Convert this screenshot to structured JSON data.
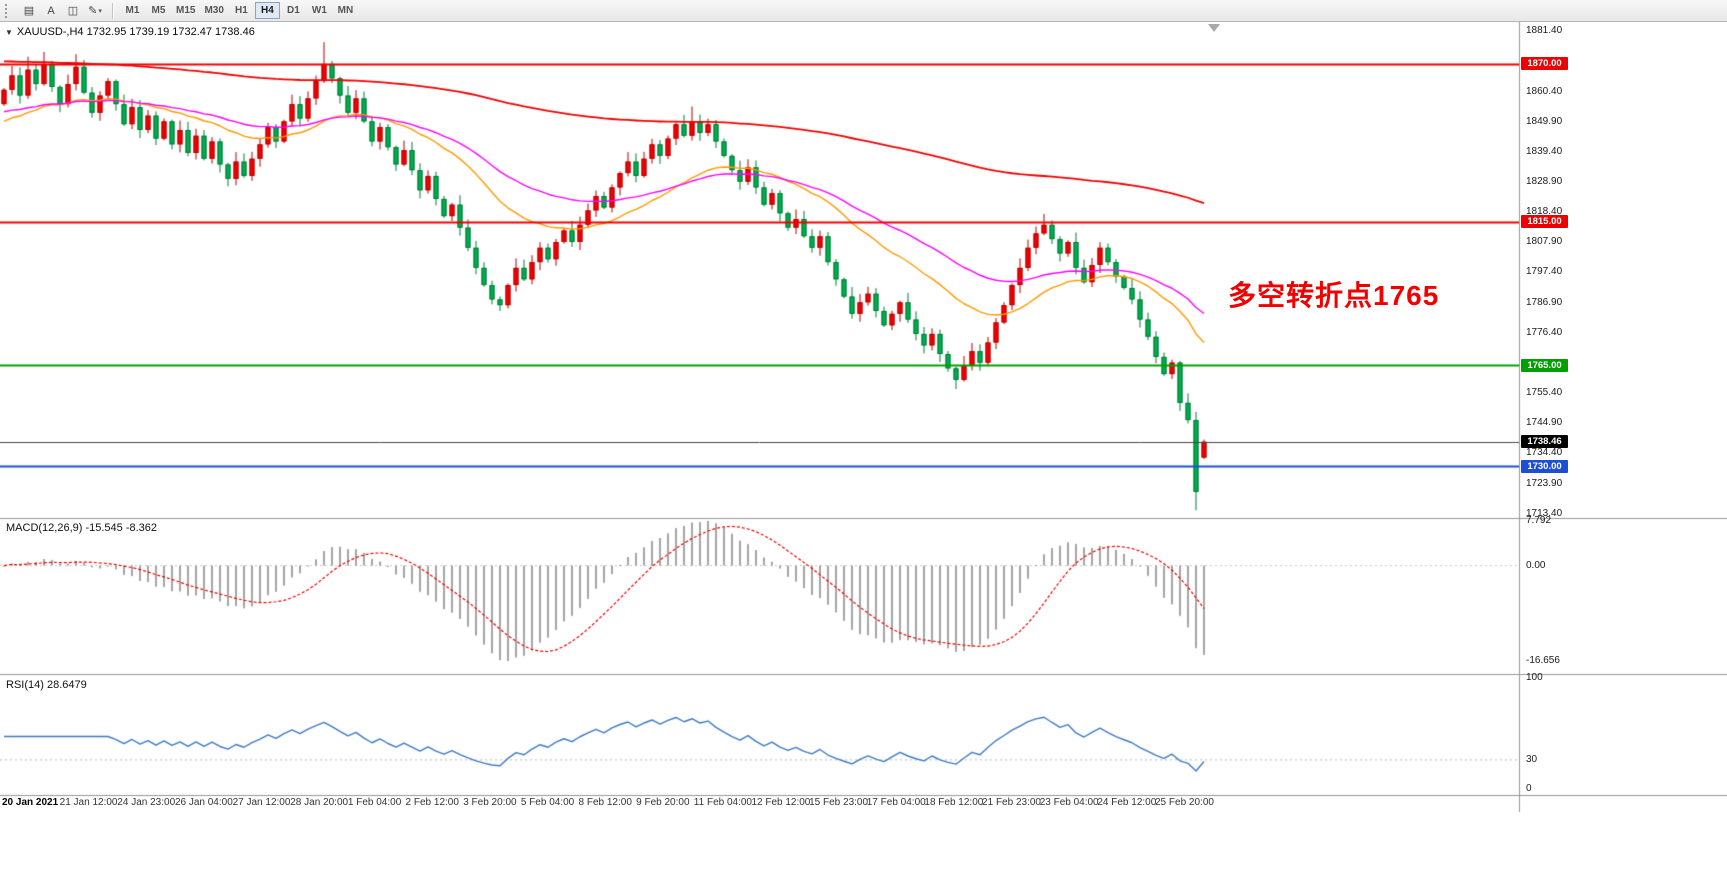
{
  "toolbar": {
    "tools": [
      {
        "name": "chart-type",
        "glyph": "▤",
        "dropdown": false
      },
      {
        "name": "text-label",
        "glyph": "A",
        "dropdown": false
      },
      {
        "name": "template",
        "glyph": "◫",
        "dropdown": false
      },
      {
        "name": "draw-objects",
        "glyph": "✎",
        "dropdown": true
      }
    ],
    "timeframes": [
      "M1",
      "M5",
      "M15",
      "M30",
      "H1",
      "H4",
      "D1",
      "W1",
      "MN"
    ],
    "selected_timeframe": "H4"
  },
  "chart": {
    "symbol_ohlc": "XAUUSD-,H4 1732.95 1739.19 1732.47 1738.46",
    "annotation_text": "多空转折点1765",
    "annotation_color": "#f20000"
  },
  "indicators": {
    "macd_label": "MACD(12,26,9) -15.545 -8.362",
    "rsi_label": "RSI(14) 28.6479"
  },
  "chart_data": {
    "type": "candlestick",
    "symbol": "XAUUSD-",
    "timeframe": "H4",
    "ohlc_readout": {
      "open": 1732.95,
      "high": 1739.19,
      "low": 1732.47,
      "close": 1738.46
    },
    "price_axis_ticks": [
      {
        "v": 1881.4,
        "label": "1881.40"
      },
      {
        "v": 1860.4,
        "label": "1860.40"
      },
      {
        "v": 1849.9,
        "label": "1849.90"
      },
      {
        "v": 1839.4,
        "label": "1839.40"
      },
      {
        "v": 1828.9,
        "label": "1828.90"
      },
      {
        "v": 1818.4,
        "label": "1818.40"
      },
      {
        "v": 1807.9,
        "label": "1807.90"
      },
      {
        "v": 1797.4,
        "label": "1797.40"
      },
      {
        "v": 1786.9,
        "label": "1786.90"
      },
      {
        "v": 1776.4,
        "label": "1776.40"
      },
      {
        "v": 1755.4,
        "label": "1755.40"
      },
      {
        "v": 1744.9,
        "label": "1744.90"
      },
      {
        "v": 1734.4,
        "label": "1734.40"
      },
      {
        "v": 1723.9,
        "label": "1723.90"
      },
      {
        "v": 1713.4,
        "label": "1713.40"
      }
    ],
    "hlines": [
      {
        "price": 1870.0,
        "label": "1870.00",
        "color": "#ee0000",
        "width": 2
      },
      {
        "price": 1815.0,
        "label": "1815.00",
        "color": "#ee0000",
        "width": 2
      },
      {
        "price": 1765.0,
        "label": "1765.00",
        "color": "#00a000",
        "width": 2
      },
      {
        "price": 1730.0,
        "label": "1730.00",
        "color": "#1c4fd6",
        "width": 2
      }
    ],
    "current_price": {
      "value": 1738.46,
      "label": "1738.46",
      "badge_color": "#000000",
      "line_color": "#444444"
    },
    "candles": {
      "bull_color": "#f50000",
      "bull_border": "#b00000",
      "bear_color": "#00ae4d",
      "bear_border": "#00793a",
      "first_open": 1856,
      "closes": [
        1861,
        1866,
        1859,
        1868,
        1863,
        1870,
        1862,
        1856,
        1863,
        1869,
        1860,
        1853,
        1859,
        1864,
        1856,
        1849,
        1855,
        1847,
        1852,
        1844,
        1850,
        1842,
        1847,
        1839,
        1845,
        1837,
        1843,
        1835,
        1830,
        1836,
        1831,
        1837,
        1842,
        1848,
        1843,
        1850,
        1856,
        1851,
        1858,
        1864,
        1870,
        1865,
        1859,
        1853,
        1858,
        1850,
        1843,
        1848,
        1841,
        1835,
        1840,
        1833,
        1826,
        1831,
        1823,
        1817,
        1821,
        1813,
        1806,
        1799,
        1793,
        1788,
        1786,
        1793,
        1799,
        1795,
        1801,
        1806,
        1802,
        1808,
        1812,
        1808,
        1814,
        1819,
        1824,
        1820,
        1827,
        1832,
        1836,
        1831,
        1837,
        1842,
        1838,
        1844,
        1849,
        1845,
        1850,
        1846,
        1849,
        1843,
        1838,
        1833,
        1829,
        1834,
        1827,
        1821,
        1825,
        1818,
        1813,
        1816,
        1810,
        1806,
        1810,
        1801,
        1795,
        1789,
        1783,
        1787,
        1790,
        1784,
        1779,
        1783,
        1787,
        1781,
        1776,
        1772,
        1776,
        1769,
        1764,
        1760,
        1765,
        1770,
        1766,
        1773,
        1780,
        1786,
        1793,
        1799,
        1806,
        1811,
        1814,
        1809,
        1804,
        1808,
        1799,
        1794,
        1800,
        1806,
        1801,
        1796,
        1792,
        1788,
        1781,
        1775,
        1768,
        1762,
        1766,
        1752,
        1746,
        1721,
        1738.46
      ],
      "high_overrides": {
        "3": 1872.5,
        "5": 1874.2,
        "9": 1873.4,
        "40": 1877.6,
        "86": 1855.2,
        "130": 1817.8
      },
      "low_overrides": {
        "28": 1827.4,
        "62": 1784.0,
        "115": 1769.2,
        "119": 1756.8,
        "149": 1714.6
      },
      "last_ohlc": [
        1732.95,
        1739.19,
        1732.47,
        1738.46
      ]
    },
    "moving_averages": [
      {
        "name": "ma-fast",
        "period": 24,
        "seed": 1849,
        "color": "#ff9900",
        "width": 1.4
      },
      {
        "name": "ma-mid",
        "period": 44,
        "seed": 1853,
        "color": "#ff00ff",
        "width": 1.4
      },
      {
        "name": "ma-slow",
        "period": 200,
        "seed": 1871,
        "color": "#ee0000",
        "width": 1.8
      }
    ],
    "macd": {
      "params": "12,26,9",
      "current_macd": -15.545,
      "current_signal": -8.362,
      "axis": [
        {
          "v": 7.792,
          "label": "7.792"
        },
        {
          "v": 0,
          "label": "0.00"
        },
        {
          "v": -16.656,
          "label": "-16.656"
        }
      ],
      "histogram_color": "#8f8f8f",
      "signal_color": "#ee0000"
    },
    "rsi": {
      "period": 14,
      "current": 28.6479,
      "level": 30,
      "color": "#3d79c2",
      "axis": [
        {
          "v": 100,
          "label": "100"
        },
        {
          "v": 30,
          "label": "30"
        },
        {
          "v": 0,
          "label": "0"
        }
      ]
    },
    "time_axis": [
      "20 Jan 2021",
      "21 Jan 12:00",
      "24 Jan 23:00",
      "26 Jan 04:00",
      "27 Jan 12:00",
      "28 Jan 20:00",
      "1 Feb 04:00",
      "2 Feb 12:00",
      "3 Feb 20:00",
      "5 Feb 04:00",
      "8 Feb 12:00",
      "9 Feb 20:00",
      "11 Feb 04:00",
      "12 Feb 12:00",
      "15 Feb 23:00",
      "17 Feb 04:00",
      "18 Feb 12:00",
      "21 Feb 23:00",
      "23 Feb 04:00",
      "24 Feb 12:00",
      "25 Feb 20:00"
    ]
  }
}
